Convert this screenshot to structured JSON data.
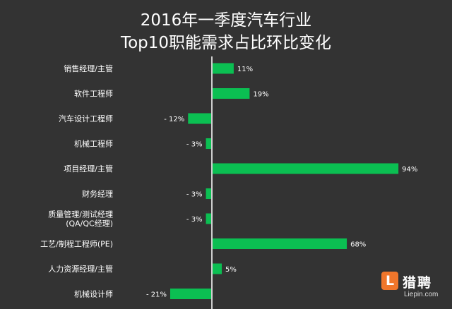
{
  "title_line1": "2016年一季度汽车行业",
  "title_line2": "Top10职能需求占比环比变化",
  "chart_data": {
    "type": "bar",
    "orientation": "horizontal",
    "title": "2016年一季度汽车行业 Top10职能需求占比环比变化",
    "categories": [
      [
        "销售经理/主管"
      ],
      [
        "软件工程师"
      ],
      [
        "汽车设计工程师"
      ],
      [
        "机械工程师"
      ],
      [
        "项目经理/主管"
      ],
      [
        "财务经理"
      ],
      [
        "质量管理/测试经理",
        "(QA/QC经理)"
      ],
      [
        "工艺/制程工程师(PE)"
      ],
      [
        "人力资源经理/主管"
      ],
      [
        "机械设计师"
      ]
    ],
    "values": [
      11,
      19,
      -12,
      -3,
      94,
      -3,
      -3,
      68,
      5,
      -21
    ],
    "value_labels": [
      "11%",
      "19%",
      "- 12%",
      "- 3%",
      "94%",
      "- 3%",
      "- 3%",
      "68%",
      "5%",
      "- 21%"
    ],
    "unit": "%",
    "bar_color": "#0bbf52",
    "axis_color": "#d0d0d0",
    "grid": false,
    "legend": "none"
  },
  "logo": {
    "badge": "L",
    "name": "猎聘",
    "url": "Liepin.com"
  }
}
